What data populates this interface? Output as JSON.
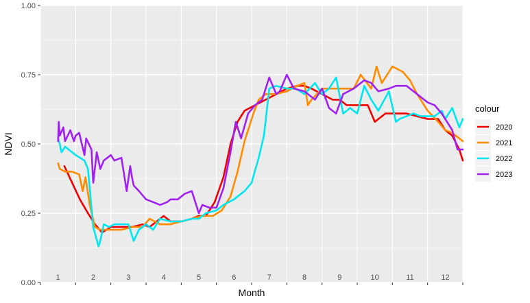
{
  "chart_data": {
    "type": "line",
    "xlabel": "Month",
    "ylabel": "NDVI",
    "xlim": [
      0.5,
      12.5
    ],
    "ylim": [
      0,
      1
    ],
    "x_ticks": [
      1,
      2,
      3,
      4,
      5,
      6,
      7,
      8,
      9,
      10,
      11,
      12
    ],
    "x_tick_labels": [
      "1",
      "2",
      "3",
      "4",
      "5",
      "6",
      "7",
      "8",
      "9",
      "10",
      "11",
      "12"
    ],
    "y_ticks": [
      0,
      0.25,
      0.5,
      0.75,
      1
    ],
    "y_tick_labels": [
      "0.00",
      "0.25",
      "0.50",
      "0.75",
      "1.00"
    ],
    "grid": true,
    "background": "#ebebeb",
    "legend": {
      "title": "colour",
      "position": "right"
    },
    "series": [
      {
        "name": "2020",
        "color": "#ee0000",
        "x": [
          1.18,
          1.4,
          1.62,
          1.85,
          2.05,
          2.25,
          2.5,
          2.8,
          3.1,
          3.4,
          3.6,
          3.8,
          4.0,
          4.2,
          4.5,
          4.8,
          5.0,
          5.2,
          5.45,
          5.7,
          5.9,
          6.1,
          6.3,
          6.6,
          6.9,
          7.2,
          7.5,
          7.8,
          8.0,
          8.2,
          8.5,
          8.8,
          9.0,
          9.2,
          9.5,
          9.8,
          10.0,
          10.3,
          10.6,
          10.9,
          11.2,
          11.5,
          11.8,
          12.0,
          12.2,
          12.4,
          12.5
        ],
        "y": [
          0.42,
          0.36,
          0.3,
          0.25,
          0.21,
          0.18,
          0.2,
          0.2,
          0.2,
          0.21,
          0.2,
          0.22,
          0.24,
          0.22,
          0.22,
          0.23,
          0.24,
          0.24,
          0.29,
          0.38,
          0.5,
          0.58,
          0.62,
          0.64,
          0.66,
          0.68,
          0.7,
          0.71,
          0.71,
          0.7,
          0.68,
          0.66,
          0.66,
          0.64,
          0.64,
          0.64,
          0.58,
          0.61,
          0.61,
          0.61,
          0.6,
          0.59,
          0.59,
          0.55,
          0.53,
          0.48,
          0.44
        ]
      },
      {
        "name": "2021",
        "color": "#ff8c00",
        "x": [
          1.0,
          1.05,
          1.2,
          1.4,
          1.6,
          1.7,
          1.78,
          1.9,
          2.05,
          2.2,
          2.5,
          2.8,
          3.1,
          3.4,
          3.6,
          3.9,
          4.2,
          4.5,
          4.8,
          5.1,
          5.4,
          5.65,
          5.9,
          6.1,
          6.3,
          6.55,
          6.7,
          6.9,
          7.2,
          7.5,
          7.8,
          8.0,
          8.1,
          8.2,
          8.5,
          8.8,
          9.1,
          9.4,
          9.6,
          9.9,
          10.05,
          10.2,
          10.5,
          10.8,
          11.0,
          11.2,
          11.5,
          11.8,
          12.0,
          12.2,
          12.5
        ],
        "y": [
          0.43,
          0.41,
          0.4,
          0.4,
          0.39,
          0.33,
          0.38,
          0.28,
          0.2,
          0.19,
          0.19,
          0.19,
          0.2,
          0.2,
          0.23,
          0.21,
          0.21,
          0.22,
          0.23,
          0.24,
          0.24,
          0.26,
          0.31,
          0.4,
          0.51,
          0.61,
          0.66,
          0.68,
          0.68,
          0.69,
          0.71,
          0.72,
          0.64,
          0.66,
          0.7,
          0.7,
          0.7,
          0.7,
          0.75,
          0.7,
          0.78,
          0.72,
          0.78,
          0.76,
          0.73,
          0.68,
          0.62,
          0.58,
          0.55,
          0.54,
          0.51
        ]
      },
      {
        "name": "2022",
        "color": "#00e5ee",
        "x": [
          1.0,
          1.05,
          1.1,
          1.2,
          1.5,
          1.75,
          1.85,
          2.0,
          2.15,
          2.2,
          2.3,
          2.45,
          2.6,
          2.85,
          3.0,
          3.15,
          3.3,
          3.5,
          3.7,
          3.9,
          4.2,
          4.5,
          4.8,
          5.0,
          5.2,
          5.5,
          5.7,
          6.0,
          6.3,
          6.5,
          6.7,
          6.85,
          7.0,
          7.2,
          7.5,
          7.75,
          8.0,
          8.3,
          8.5,
          8.7,
          8.9,
          9.1,
          9.3,
          9.5,
          9.7,
          9.9,
          10.1,
          10.4,
          10.6,
          10.7,
          10.9,
          11.1,
          11.3,
          11.5,
          11.7,
          11.9,
          12.0,
          12.2,
          12.4,
          12.5
        ],
        "y": [
          0.52,
          0.5,
          0.47,
          0.49,
          0.46,
          0.44,
          0.41,
          0.2,
          0.13,
          0.15,
          0.21,
          0.2,
          0.21,
          0.21,
          0.21,
          0.15,
          0.19,
          0.21,
          0.19,
          0.23,
          0.22,
          0.22,
          0.23,
          0.23,
          0.25,
          0.26,
          0.28,
          0.3,
          0.33,
          0.36,
          0.45,
          0.53,
          0.7,
          0.71,
          0.7,
          0.7,
          0.68,
          0.72,
          0.68,
          0.7,
          0.74,
          0.61,
          0.63,
          0.61,
          0.71,
          0.66,
          0.62,
          0.69,
          0.58,
          0.59,
          0.6,
          0.61,
          0.6,
          0.6,
          0.6,
          0.62,
          0.59,
          0.63,
          0.56,
          0.59
        ]
      },
      {
        "name": "2023",
        "color": "#a020f0",
        "x": [
          1.0,
          1.02,
          1.05,
          1.15,
          1.2,
          1.35,
          1.45,
          1.5,
          1.6,
          1.75,
          1.8,
          1.95,
          2.0,
          2.1,
          2.2,
          2.3,
          2.5,
          2.6,
          2.8,
          2.95,
          3.05,
          3.1,
          3.15,
          3.3,
          3.5,
          3.7,
          3.9,
          4.1,
          4.2,
          4.4,
          4.6,
          4.8,
          5.0,
          5.1,
          5.3,
          5.5,
          5.7,
          5.9,
          6.05,
          6.2,
          6.4,
          6.6,
          6.8,
          7.0,
          7.2,
          7.3,
          7.5,
          7.7,
          8.0,
          8.3,
          8.5,
          8.7,
          8.9,
          9.1,
          9.4,
          9.7,
          9.9,
          10.1,
          10.4,
          10.6,
          10.9,
          11.1,
          11.3,
          11.5,
          11.7,
          11.9,
          12.0,
          12.2,
          12.35,
          12.5
        ],
        "y": [
          0.51,
          0.58,
          0.53,
          0.56,
          0.51,
          0.55,
          0.51,
          0.53,
          0.54,
          0.46,
          0.52,
          0.48,
          0.36,
          0.47,
          0.41,
          0.44,
          0.46,
          0.44,
          0.45,
          0.33,
          0.42,
          0.38,
          0.35,
          0.33,
          0.3,
          0.29,
          0.28,
          0.29,
          0.3,
          0.3,
          0.32,
          0.33,
          0.25,
          0.28,
          0.27,
          0.27,
          0.34,
          0.47,
          0.58,
          0.52,
          0.61,
          0.64,
          0.66,
          0.74,
          0.68,
          0.69,
          0.75,
          0.7,
          0.69,
          0.66,
          0.7,
          0.63,
          0.61,
          0.68,
          0.7,
          0.73,
          0.72,
          0.69,
          0.7,
          0.71,
          0.71,
          0.69,
          0.67,
          0.65,
          0.64,
          0.61,
          0.59,
          0.55,
          0.48,
          0.48
        ]
      }
    ]
  }
}
